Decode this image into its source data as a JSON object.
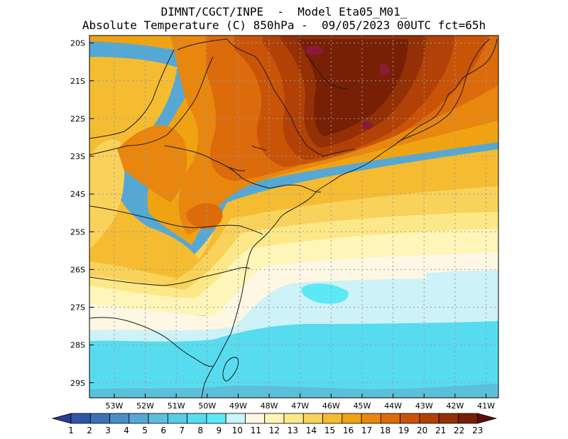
{
  "header": {
    "line1": "DIMNT/CGCT/INPE  -  Model Eta05_M01_",
    "line2": "Absolute Temperature (C) 850hPa -  09/05/2023 00UTC fct=65h"
  },
  "map": {
    "lat_labels": [
      "20S",
      "21S",
      "22S",
      "23S",
      "24S",
      "25S",
      "26S",
      "27S",
      "28S",
      "29S"
    ],
    "lon_labels": [
      "53W",
      "52W",
      "51W",
      "50W",
      "49W",
      "48W",
      "47W",
      "46W",
      "45W",
      "44W",
      "43W",
      "42W",
      "41W"
    ],
    "lat_range": [
      -29.4,
      -19.8
    ],
    "lon_range": [
      -53.8,
      -40.6
    ]
  },
  "colorbar": {
    "labels": [
      "1",
      "2",
      "3",
      "4",
      "5",
      "6",
      "7",
      "8",
      "9",
      "10",
      "11",
      "12",
      "13",
      "14",
      "15",
      "16",
      "17",
      "18",
      "19",
      "20",
      "21",
      "22",
      "23"
    ],
    "colors": [
      "#2a3d8f",
      "#2f55a8",
      "#3a72b8",
      "#4a8dc6",
      "#56a8d4",
      "#5cbfd9",
      "#58cde6",
      "#57dcef",
      "#5de8f5",
      "#cdf2f7",
      "#fdf7e4",
      "#fef5b8",
      "#fde889",
      "#f8d25a",
      "#f5bc32",
      "#f0a311",
      "#e8860e",
      "#dc6b0b",
      "#c95408",
      "#b14106",
      "#933005",
      "#772006",
      "#5a0d10"
    ]
  },
  "colors": {
    "coastline": "#1a1a1a",
    "grid": "#9a9a9a",
    "frame": "#000000"
  }
}
